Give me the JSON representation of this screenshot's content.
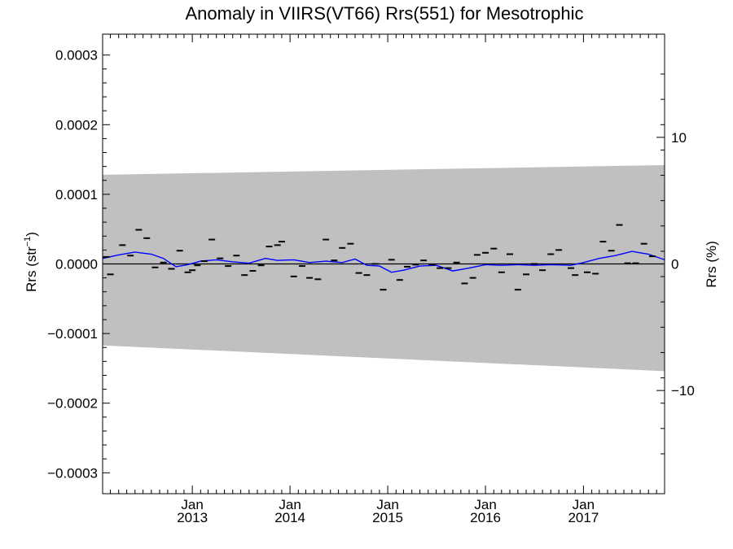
{
  "chart_data": {
    "type": "scatter",
    "title": "Anomaly in VIIRS(VT66) Rrs(551) for Mesotrophic",
    "ylabel_left": "Rrs (str",
    "ylabel_left_sup": "−1",
    "ylabel_left_tail": ")",
    "ylabel_right": "Rrs (%)",
    "xlim": [
      "2012-02-01",
      "2017-10-31"
    ],
    "ylim_left": [
      -0.00033,
      0.00033
    ],
    "ylim_right": [
      -18.15,
      18.15
    ],
    "x_ticks": [
      {
        "date": "2013-01-01",
        "month": "Jan",
        "year": "2013"
      },
      {
        "date": "2014-01-01",
        "month": "Jan",
        "year": "2014"
      },
      {
        "date": "2015-01-01",
        "month": "Jan",
        "year": "2015"
      },
      {
        "date": "2016-01-01",
        "month": "Jan",
        "year": "2016"
      },
      {
        "date": "2017-01-01",
        "month": "Jan",
        "year": "2017"
      }
    ],
    "y_ticks_left": [
      {
        "value": 0.0003,
        "label": "0.0003"
      },
      {
        "value": 0.0002,
        "label": "0.0002"
      },
      {
        "value": 0.0001,
        "label": "0.0001"
      },
      {
        "value": 0.0,
        "label": "0.0000"
      },
      {
        "value": -0.0001,
        "label": "−0.0001"
      },
      {
        "value": -0.0002,
        "label": "−0.0002"
      },
      {
        "value": -0.0003,
        "label": "−0.0003"
      }
    ],
    "y_ticks_right": [
      {
        "value": 10,
        "label": "10"
      },
      {
        "value": 0,
        "label": "0"
      },
      {
        "value": -10,
        "label": "−10"
      }
    ],
    "band": {
      "color": "#c0c0c0",
      "upper": [
        {
          "date": "2012-02-01",
          "value": 0.000128
        },
        {
          "date": "2017-10-31",
          "value": 0.000142
        }
      ],
      "lower": [
        {
          "date": "2012-02-01",
          "value": -0.000117
        },
        {
          "date": "2017-10-31",
          "value": -0.000154
        }
      ]
    },
    "zero_line": 0,
    "points": [
      {
        "date": "2012-02-15",
        "value": 1e-05
      },
      {
        "date": "2012-03-01",
        "value": -1.5e-05
      },
      {
        "date": "2012-04-15",
        "value": 2.7e-05
      },
      {
        "date": "2012-05-15",
        "value": 1.2e-05
      },
      {
        "date": "2012-06-15",
        "value": 4.9e-05
      },
      {
        "date": "2012-07-15",
        "value": 3.7e-05
      },
      {
        "date": "2012-08-15",
        "value": -5e-06
      },
      {
        "date": "2012-09-15",
        "value": 2e-06
      },
      {
        "date": "2012-10-15",
        "value": -7e-06
      },
      {
        "date": "2012-11-15",
        "value": 1.9e-05
      },
      {
        "date": "2012-12-15",
        "value": -1.2e-05
      },
      {
        "date": "2013-01-01",
        "value": -9e-06
      },
      {
        "date": "2013-01-20",
        "value": -2e-06
      },
      {
        "date": "2013-02-15",
        "value": 4e-06
      },
      {
        "date": "2013-03-15",
        "value": 3.5e-05
      },
      {
        "date": "2013-04-15",
        "value": 8e-06
      },
      {
        "date": "2013-05-15",
        "value": -3e-06
      },
      {
        "date": "2013-06-15",
        "value": 1.2e-05
      },
      {
        "date": "2013-07-15",
        "value": -1.6e-05
      },
      {
        "date": "2013-08-15",
        "value": -1e-05
      },
      {
        "date": "2013-09-15",
        "value": -2e-06
      },
      {
        "date": "2013-10-15",
        "value": 2.5e-05
      },
      {
        "date": "2013-11-15",
        "value": 2.7e-05
      },
      {
        "date": "2013-12-01",
        "value": 3.2e-05
      },
      {
        "date": "2014-01-15",
        "value": -1.8e-05
      },
      {
        "date": "2014-02-15",
        "value": -3e-06
      },
      {
        "date": "2014-03-15",
        "value": -2e-05
      },
      {
        "date": "2014-04-15",
        "value": -2.2e-05
      },
      {
        "date": "2014-05-15",
        "value": 3.5e-05
      },
      {
        "date": "2014-06-15",
        "value": 5e-06
      },
      {
        "date": "2014-07-15",
        "value": 2.3e-05
      },
      {
        "date": "2014-08-15",
        "value": 2.9e-05
      },
      {
        "date": "2014-09-15",
        "value": -1.3e-05
      },
      {
        "date": "2014-10-15",
        "value": -1.6e-05
      },
      {
        "date": "2014-11-15",
        "value": 0.0
      },
      {
        "date": "2014-12-15",
        "value": -3.7e-05
      },
      {
        "date": "2015-01-15",
        "value": 6e-06
      },
      {
        "date": "2015-02-15",
        "value": -2.3e-05
      },
      {
        "date": "2015-03-15",
        "value": -4e-06
      },
      {
        "date": "2015-04-15",
        "value": -1e-06
      },
      {
        "date": "2015-05-15",
        "value": 5e-06
      },
      {
        "date": "2015-06-15",
        "value": -1e-06
      },
      {
        "date": "2015-07-15",
        "value": -6e-06
      },
      {
        "date": "2015-08-15",
        "value": -6e-06
      },
      {
        "date": "2015-09-15",
        "value": 2e-06
      },
      {
        "date": "2015-10-15",
        "value": -2.8e-05
      },
      {
        "date": "2015-11-15",
        "value": -2e-05
      },
      {
        "date": "2015-12-01",
        "value": 1.3e-05
      },
      {
        "date": "2016-01-01",
        "value": 1.6e-05
      },
      {
        "date": "2016-02-01",
        "value": 2.2e-05
      },
      {
        "date": "2016-03-01",
        "value": -1.2e-05
      },
      {
        "date": "2016-04-01",
        "value": 1.4e-05
      },
      {
        "date": "2016-05-01",
        "value": -3.7e-05
      },
      {
        "date": "2016-06-01",
        "value": -1.5e-05
      },
      {
        "date": "2016-07-01",
        "value": 0.0
      },
      {
        "date": "2016-08-01",
        "value": -9e-06
      },
      {
        "date": "2016-09-01",
        "value": 1.4e-05
      },
      {
        "date": "2016-10-01",
        "value": 2e-05
      },
      {
        "date": "2016-11-15",
        "value": -6e-06
      },
      {
        "date": "2016-12-01",
        "value": -1.6e-05
      },
      {
        "date": "2017-01-15",
        "value": -1.2e-05
      },
      {
        "date": "2017-02-15",
        "value": -1.4e-05
      },
      {
        "date": "2017-03-15",
        "value": 3.2e-05
      },
      {
        "date": "2017-04-15",
        "value": 1.9e-05
      },
      {
        "date": "2017-05-15",
        "value": 5.6e-05
      },
      {
        "date": "2017-06-15",
        "value": 1e-06
      },
      {
        "date": "2017-07-15",
        "value": 1e-06
      },
      {
        "date": "2017-08-15",
        "value": 2.9e-05
      },
      {
        "date": "2017-09-15",
        "value": 1.1e-05
      }
    ],
    "trend_line": {
      "color": "#0000ff",
      "points": [
        {
          "date": "2012-02-01",
          "value": 8e-06
        },
        {
          "date": "2012-04-01",
          "value": 1.3e-05
        },
        {
          "date": "2012-06-01",
          "value": 1.7e-05
        },
        {
          "date": "2012-08-01",
          "value": 1.4e-05
        },
        {
          "date": "2012-09-15",
          "value": 8e-06
        },
        {
          "date": "2012-11-01",
          "value": -4e-06
        },
        {
          "date": "2012-12-15",
          "value": -1e-06
        },
        {
          "date": "2013-02-01",
          "value": 4e-06
        },
        {
          "date": "2013-04-01",
          "value": 6e-06
        },
        {
          "date": "2013-06-01",
          "value": 3e-06
        },
        {
          "date": "2013-08-01",
          "value": 1e-06
        },
        {
          "date": "2013-10-01",
          "value": 8e-06
        },
        {
          "date": "2013-11-15",
          "value": 5e-06
        },
        {
          "date": "2014-01-15",
          "value": 6e-06
        },
        {
          "date": "2014-03-15",
          "value": 2e-06
        },
        {
          "date": "2014-05-15",
          "value": 4e-06
        },
        {
          "date": "2014-07-15",
          "value": 2e-06
        },
        {
          "date": "2014-09-01",
          "value": 7e-06
        },
        {
          "date": "2014-10-15",
          "value": -2e-06
        },
        {
          "date": "2014-12-01",
          "value": -3e-06
        },
        {
          "date": "2015-01-15",
          "value": -1.2e-05
        },
        {
          "date": "2015-03-01",
          "value": -9e-06
        },
        {
          "date": "2015-05-01",
          "value": -3e-06
        },
        {
          "date": "2015-07-01",
          "value": -2e-06
        },
        {
          "date": "2015-09-01",
          "value": -1e-05
        },
        {
          "date": "2015-11-01",
          "value": -6e-06
        },
        {
          "date": "2016-01-01",
          "value": -1e-06
        },
        {
          "date": "2016-03-01",
          "value": -2e-06
        },
        {
          "date": "2016-05-01",
          "value": -1e-06
        },
        {
          "date": "2016-07-01",
          "value": -2e-06
        },
        {
          "date": "2016-09-01",
          "value": -1e-06
        },
        {
          "date": "2016-11-15",
          "value": -2e-06
        },
        {
          "date": "2017-01-01",
          "value": 2e-06
        },
        {
          "date": "2017-03-01",
          "value": 8e-06
        },
        {
          "date": "2017-05-01",
          "value": 1.2e-05
        },
        {
          "date": "2017-07-01",
          "value": 1.8e-05
        },
        {
          "date": "2017-09-01",
          "value": 1.4e-05
        },
        {
          "date": "2017-10-31",
          "value": 6e-06
        }
      ]
    },
    "error_bar_half_width": 1.2e-06
  }
}
